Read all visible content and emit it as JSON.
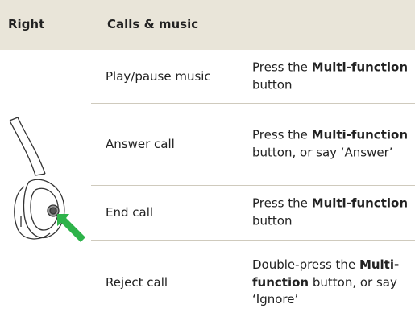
{
  "table": {
    "headers": [
      "Right",
      "Calls & music"
    ],
    "rows": [
      {
        "action": "Play/pause music",
        "description": [
          {
            "text": "Press the ",
            "bold": false
          },
          {
            "text": "Multi-function",
            "bold": true
          },
          {
            "text": " button",
            "bold": false
          }
        ]
      },
      {
        "action": "Answer call",
        "description": [
          {
            "text": "Press the ",
            "bold": false
          },
          {
            "text": "Multi-function",
            "bold": true
          },
          {
            "text": " button, or say ‘Answer’",
            "bold": false
          }
        ]
      },
      {
        "action": "End call",
        "description": [
          {
            "text": "Press the ",
            "bold": false
          },
          {
            "text": "Multi-function",
            "bold": true
          },
          {
            "text": " button",
            "bold": false
          }
        ]
      },
      {
        "action": "Reject call",
        "description": [
          {
            "text": "Double-press the ",
            "bold": false
          },
          {
            "text": "Multi-function",
            "bold": true
          },
          {
            "text": " button, or say ‘Ignore’",
            "bold": false
          }
        ]
      }
    ]
  }
}
